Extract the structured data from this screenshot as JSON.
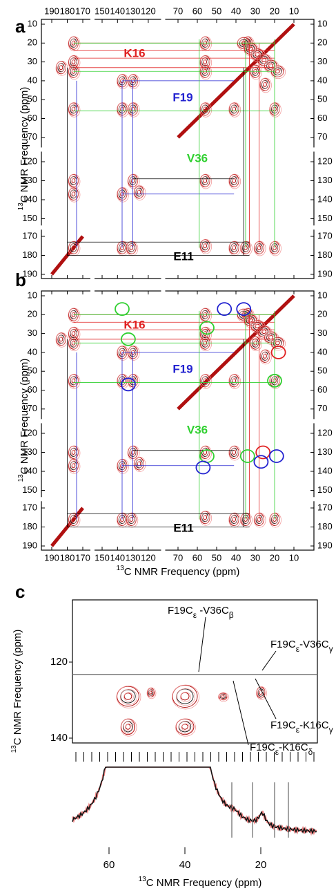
{
  "panel_a": {
    "label": "a",
    "x_ticks": [
      190,
      180,
      170,
      150,
      140,
      130,
      120,
      70,
      60,
      50,
      40,
      30,
      20,
      10
    ],
    "y_ticks": [
      10,
      20,
      30,
      40,
      50,
      60,
      70,
      120,
      130,
      140,
      150,
      170,
      180,
      190
    ],
    "y_axis_label": {
      "superscript": "13",
      "text": "C NMR Frequency (ppm)"
    },
    "residues": [
      "K16",
      "F19",
      "V36",
      "E11"
    ]
  },
  "panel_b": {
    "label": "b",
    "x_ticks": [
      190,
      180,
      170,
      150,
      140,
      130,
      120,
      70,
      60,
      50,
      40,
      30,
      20,
      10
    ],
    "y_ticks": [
      10,
      20,
      30,
      40,
      50,
      60,
      70,
      120,
      130,
      140,
      150,
      170,
      180,
      190
    ],
    "y_axis_label": {
      "superscript": "13",
      "text": "C NMR Frequency (ppm)"
    },
    "x_axis_label": {
      "superscript": "13",
      "text": "C NMR Frequency (ppm)"
    },
    "residues": [
      "K16",
      "F19",
      "V36",
      "E11"
    ]
  },
  "panel_c": {
    "label": "c",
    "y_ticks": [
      120,
      140
    ],
    "x_ticks": [
      60,
      40,
      20
    ],
    "y_axis_label": {
      "superscript": "13",
      "text": "C NMR Frequency (ppm)"
    },
    "x_axis_label": {
      "superscript": "13",
      "text": "C NMR Frequency (ppm)"
    },
    "annotations": [
      "F19Cε -V36Cβ",
      "F19Cε-V36Cγ",
      "F19Cε-K16Cγ",
      "F19Cε-K16Cδ"
    ]
  }
}
